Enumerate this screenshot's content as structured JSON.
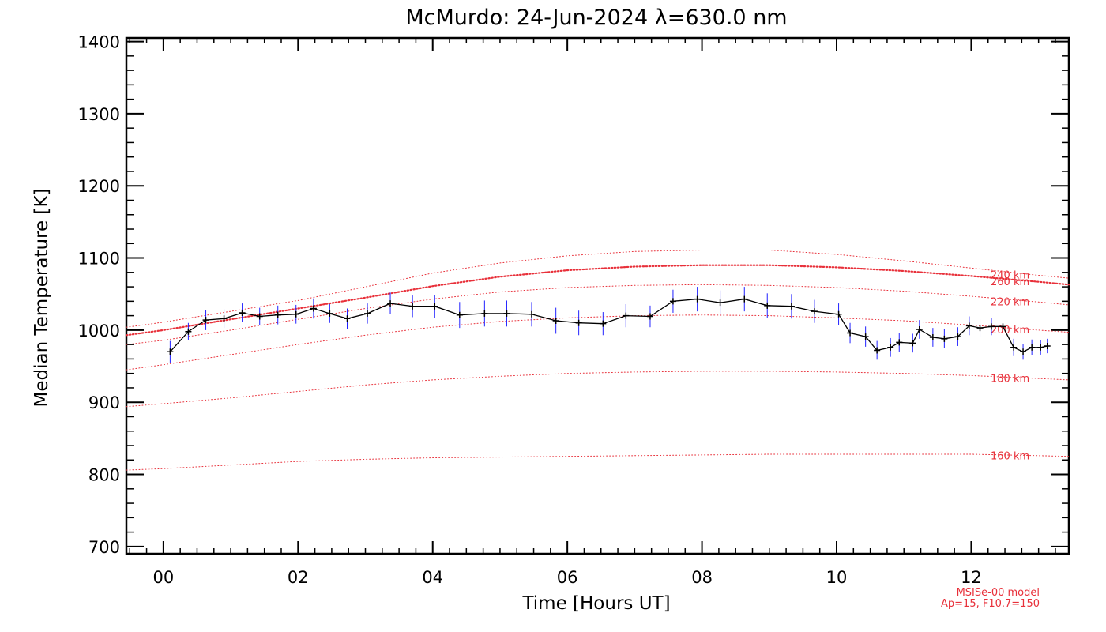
{
  "chart_data": {
    "type": "line",
    "title": "McMurdo: 24-Jun-2024 λ=630.0 nm",
    "xlabel": "Time [Hours UT]",
    "ylabel": "Median Temperature [K]",
    "xlim": [
      -0.55,
      13.45
    ],
    "ylim": [
      690,
      1405
    ],
    "x_ticks": [
      0,
      2,
      4,
      6,
      8,
      10,
      12
    ],
    "x_tick_labels": [
      "00",
      "02",
      "04",
      "06",
      "08",
      "10",
      "12"
    ],
    "y_ticks": [
      700,
      800,
      900,
      1000,
      1100,
      1200,
      1300,
      1400
    ],
    "y_tick_labels": [
      "700",
      "800",
      "900",
      "1000",
      "1100",
      "1200",
      "1300",
      "1400"
    ],
    "grid": false,
    "series": [
      {
        "color": "#000000",
        "errorbar_color": "#2020ff",
        "x": [
          0.1,
          0.37,
          0.63,
          0.9,
          1.17,
          1.43,
          1.7,
          1.97,
          2.23,
          2.47,
          2.73,
          3.03,
          3.37,
          3.7,
          4.03,
          4.4,
          4.77,
          5.1,
          5.47,
          5.83,
          6.17,
          6.53,
          6.87,
          7.23,
          7.57,
          7.93,
          8.27,
          8.63,
          8.97,
          9.33,
          9.67,
          10.03,
          10.2,
          10.43,
          10.6,
          10.8,
          10.93,
          11.13,
          11.23,
          11.43,
          11.6,
          11.8,
          11.97,
          12.13,
          12.3,
          12.47,
          12.63,
          12.77,
          12.9,
          13.03,
          13.13
        ],
        "y": [
          970,
          998,
          1014,
          1016,
          1024,
          1019,
          1021,
          1022,
          1030,
          1023,
          1016,
          1023,
          1037,
          1033,
          1033,
          1021,
          1023,
          1023,
          1022,
          1013,
          1010,
          1009,
          1020,
          1019,
          1040,
          1043,
          1038,
          1043,
          1034,
          1033,
          1026,
          1022,
          996,
          991,
          972,
          976,
          983,
          982,
          1001,
          990,
          988,
          991,
          1006,
          1003,
          1005,
          1005,
          976,
          970,
          976,
          976,
          978
        ],
        "y_err": [
          15,
          12,
          14,
          13,
          13,
          12,
          13,
          13,
          14,
          13,
          14,
          14,
          15,
          15,
          16,
          18,
          18,
          18,
          17,
          18,
          17,
          16,
          16,
          15,
          16,
          17,
          17,
          17,
          17,
          17,
          16,
          15,
          14,
          14,
          13,
          13,
          13,
          13,
          13,
          13,
          13,
          13,
          13,
          12,
          12,
          12,
          12,
          11,
          11,
          10,
          10
        ]
      }
    ],
    "model_curves": [
      {
        "label": "260 km",
        "style": "dense",
        "x": [
          -0.55,
          0,
          1,
          2,
          3,
          4,
          5,
          6,
          7,
          8,
          9,
          10,
          11,
          12,
          13,
          13.45
        ],
        "y": [
          993,
          1000,
          1015,
          1030,
          1045,
          1061,
          1074,
          1083,
          1088,
          1090,
          1090,
          1087,
          1082,
          1075,
          1067,
          1063
        ]
      },
      {
        "label": "240 km",
        "style": "sparse",
        "x": [
          -0.55,
          0,
          1,
          2,
          3,
          4,
          5,
          6,
          7,
          8,
          9,
          10,
          11,
          12,
          13,
          13.45
        ],
        "y": [
          1004,
          1011,
          1026,
          1041,
          1060,
          1079,
          1093,
          1103,
          1109,
          1111,
          1111,
          1105,
          1096,
          1086,
          1076,
          1072
        ]
      },
      {
        "label": "220 km",
        "style": "sparse",
        "x": [
          -0.55,
          0,
          1,
          2,
          3,
          4,
          5,
          6,
          7,
          8,
          9,
          10,
          11,
          12,
          13,
          13.45
        ],
        "y": [
          980,
          986,
          1000,
          1015,
          1030,
          1043,
          1053,
          1059,
          1062,
          1063,
          1062,
          1059,
          1054,
          1047,
          1039,
          1035
        ]
      },
      {
        "label": "200 km",
        "style": "sparse",
        "x": [
          -0.55,
          0,
          1,
          2,
          3,
          4,
          5,
          6,
          7,
          8,
          9,
          10,
          11,
          12,
          13,
          13.45
        ],
        "y": [
          945,
          952,
          966,
          980,
          993,
          1004,
          1012,
          1017,
          1020,
          1021,
          1020,
          1017,
          1013,
          1007,
          1000,
          997
        ]
      },
      {
        "label": "180 km",
        "style": "sparse",
        "x": [
          -0.55,
          0,
          1,
          2,
          3,
          4,
          5,
          6,
          7,
          8,
          9,
          10,
          11,
          12,
          13,
          13.45
        ],
        "y": [
          894,
          898,
          906,
          915,
          924,
          931,
          936,
          940,
          942,
          943,
          943,
          942,
          940,
          937,
          933,
          931
        ]
      },
      {
        "label": "160 km",
        "style": "sparse",
        "x": [
          -0.55,
          0,
          1,
          2,
          3,
          4,
          5,
          6,
          7,
          8,
          9,
          10,
          11,
          12,
          13,
          13.45
        ],
        "y": [
          806,
          808,
          813,
          818,
          821,
          823,
          824,
          825,
          826,
          827,
          828,
          828,
          828,
          828,
          826,
          825
        ]
      }
    ],
    "annotations": [
      "MSISe-00 model",
      "Ap=15, F10.7=150"
    ],
    "colors": {
      "data_line": "#000000",
      "error_bars": "#2020ff",
      "model": "#e8303a"
    }
  }
}
